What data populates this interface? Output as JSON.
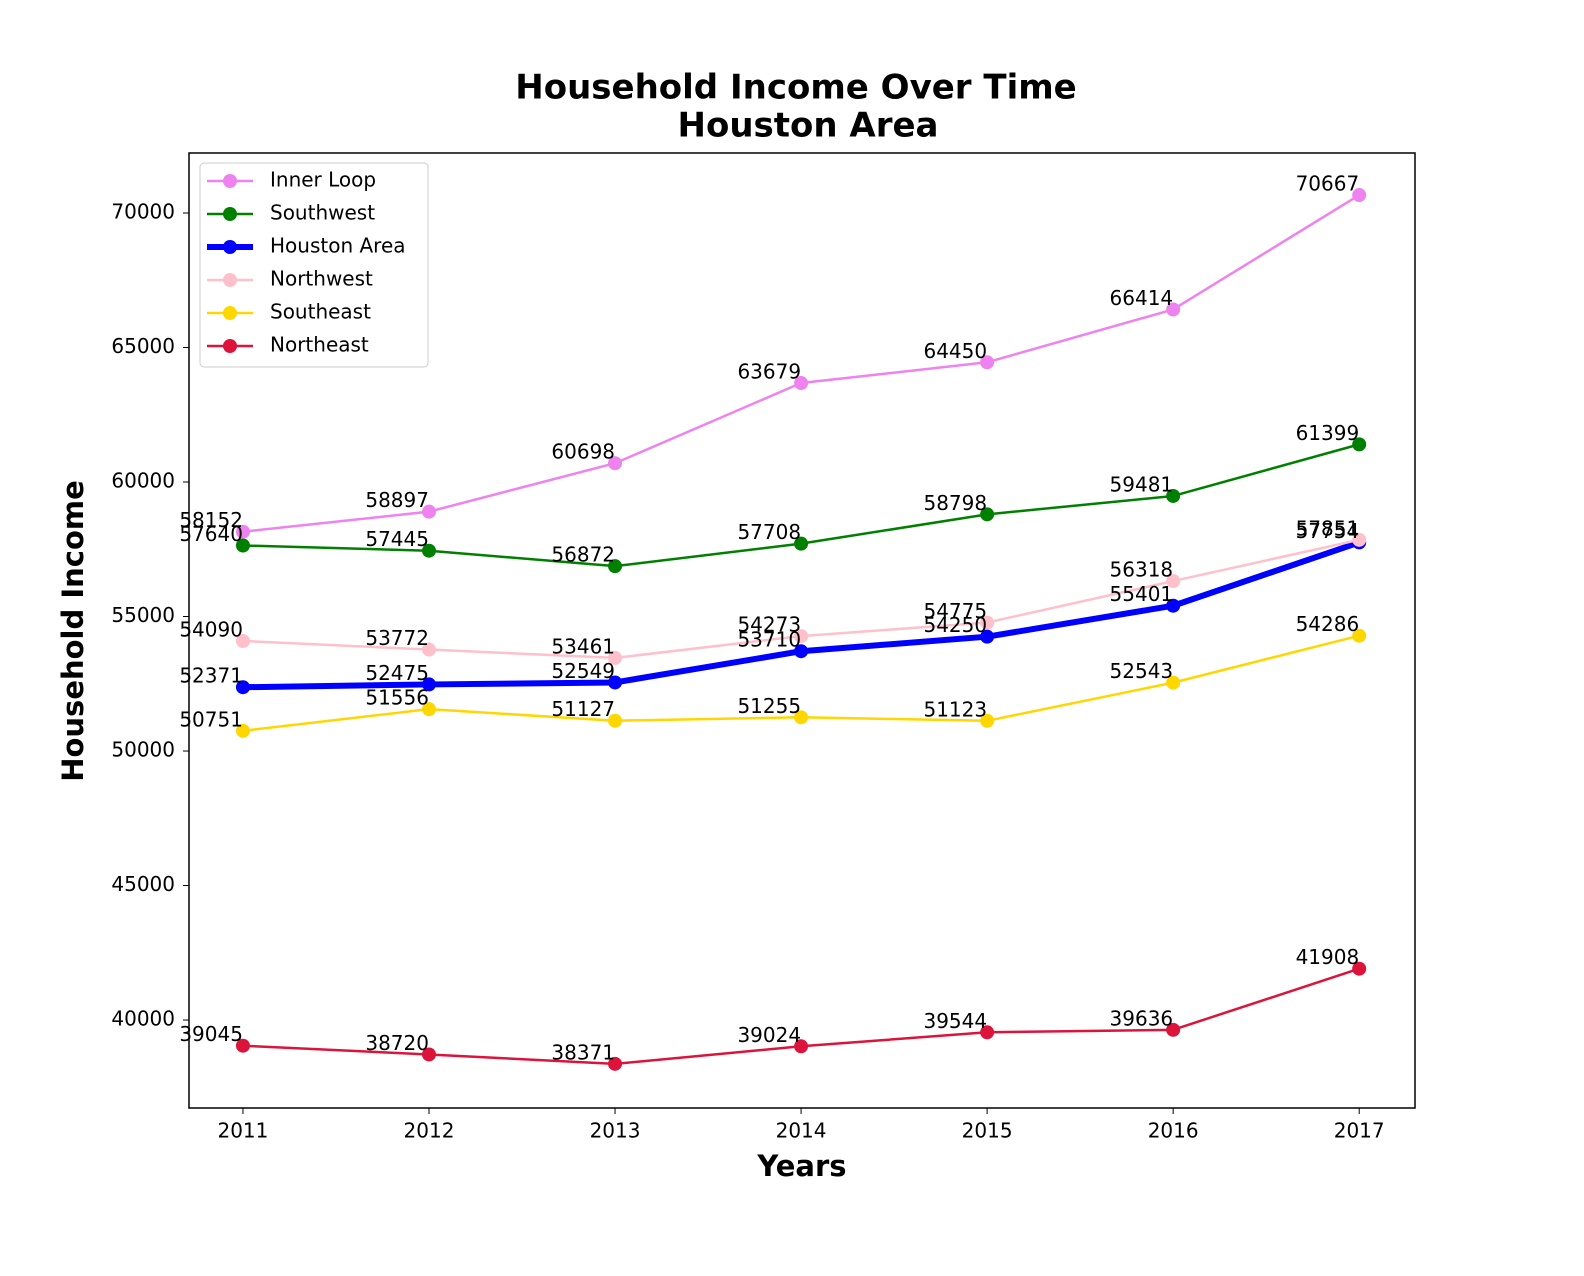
{
  "chart_data": {
    "type": "line",
    "title": "Household Income Over Time",
    "subtitle": "Houston Area",
    "x_label": "Years",
    "y_label": "Household Income",
    "x": [
      2011,
      2012,
      2013,
      2014,
      2015,
      2016,
      2017
    ],
    "series": [
      {
        "name": "Inner Loop",
        "color": "#ee82ee",
        "linewidth": 2.5,
        "values": [
          58152,
          58897,
          60698,
          63679,
          64450,
          66414,
          70667
        ]
      },
      {
        "name": "Southwest",
        "color": "#008000",
        "linewidth": 2.5,
        "values": [
          57640,
          57445,
          56872,
          57708,
          58798,
          59481,
          61399
        ]
      },
      {
        "name": "Houston Area",
        "color": "#0000ff",
        "linewidth": 6,
        "values": [
          52371,
          52475,
          52549,
          53710,
          54250,
          55401,
          57754
        ]
      },
      {
        "name": "Northwest",
        "color": "#ffc0cb",
        "linewidth": 2.5,
        "values": [
          54090,
          53772,
          53461,
          54273,
          54775,
          56318,
          57851
        ]
      },
      {
        "name": "Southeast",
        "color": "#ffd700",
        "linewidth": 2.5,
        "values": [
          50751,
          51556,
          51127,
          51255,
          51123,
          52543,
          54286
        ]
      },
      {
        "name": "Northeast",
        "color": "#dc143c",
        "linewidth": 2.5,
        "values": [
          39045,
          38720,
          38371,
          39024,
          39544,
          39636,
          41908
        ]
      }
    ],
    "xlim": [
      2010.71,
      2017.3
    ],
    "xticks": [
      2011,
      2012,
      2013,
      2014,
      2015,
      2016,
      2017
    ],
    "ylim": [
      36730,
      72230
    ],
    "yticks": [
      40000,
      45000,
      50000,
      55000,
      60000,
      65000,
      70000
    ],
    "grid": false,
    "legend": "upper left",
    "data_labels": true
  }
}
